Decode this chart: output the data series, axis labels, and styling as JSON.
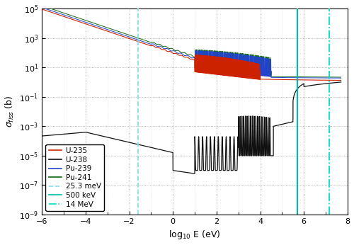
{
  "xlabel": "log$_{10}$ E (eV)",
  "ylabel": "$\\sigma_{fiss}$ (b)",
  "xlim": [
    -6,
    8
  ],
  "ylim_log": [
    -9,
    5
  ],
  "bg_color": "#ffffff",
  "lines": {
    "U235": {
      "color": "#cc2200",
      "lw": 0.8,
      "label": "U-235",
      "zorder": 3
    },
    "U238": {
      "color": "#111111",
      "lw": 0.9,
      "label": "U-238",
      "zorder": 5
    },
    "Pu239": {
      "color": "#2244cc",
      "lw": 0.7,
      "label": "Pu-239",
      "zorder": 3
    },
    "Pu241": {
      "color": "#116611",
      "lw": 0.7,
      "label": "Pu-241",
      "zorder": 3
    }
  },
  "vlines": {
    "25.3meV": {
      "x": -1.597,
      "color": "#88ddee",
      "lw": 1.3,
      "ls": "--",
      "label": "25.3 meV"
    },
    "500keV": {
      "x": 5.699,
      "color": "#00bbaa",
      "lw": 1.5,
      "ls": "-",
      "label": "500 keV"
    },
    "14MeV": {
      "x": 7.146,
      "color": "#00ddcc",
      "lw": 1.3,
      "ls": "-.",
      "label": "14 MeV"
    }
  },
  "legend_fontsize": 7.5,
  "tick_fontsize": 8,
  "label_fontsize": 9
}
